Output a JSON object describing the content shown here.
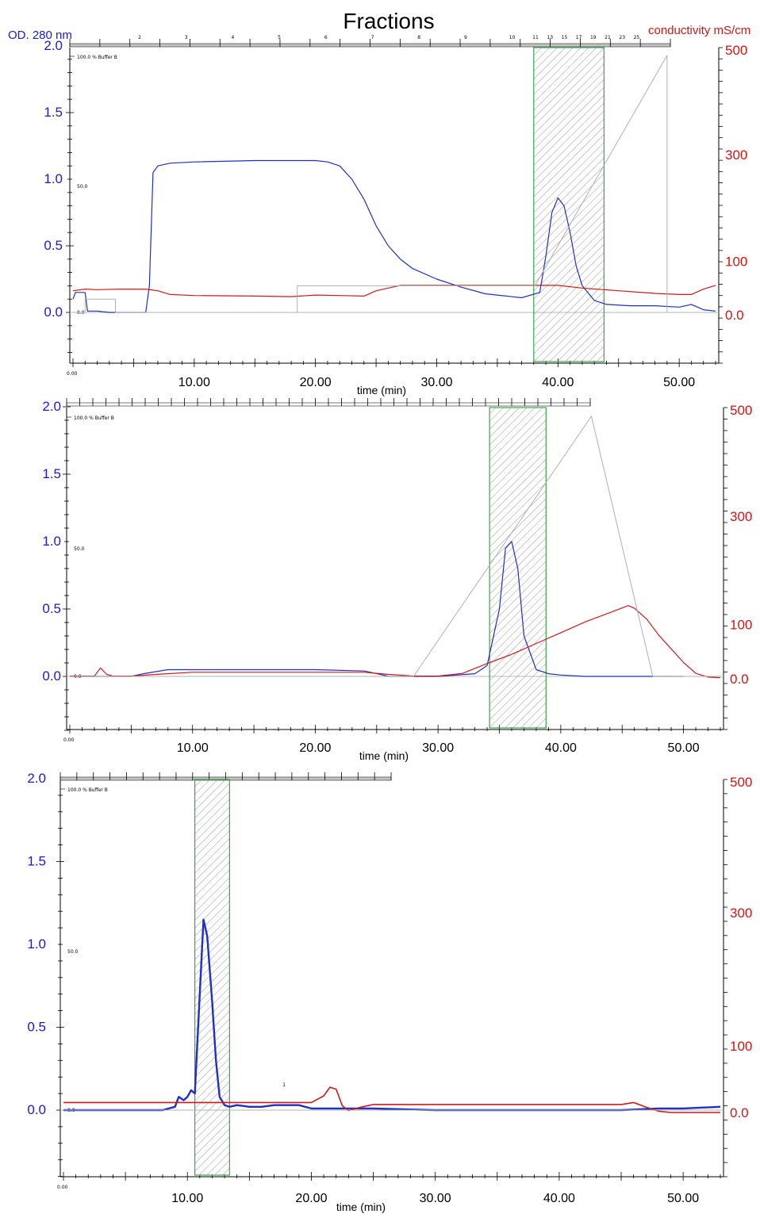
{
  "figure_title": "Fractions",
  "left_axis_label": "OD. 280 nm",
  "right_axis_label": "conductivity mS/cm",
  "colors": {
    "absorbance": "#1f2fc8",
    "conductivity": "#d21818",
    "gradient": "#b0b0b0",
    "fraction_box": "#3aa64a",
    "left_ticks": "#1a1ad6",
    "right_ticks": "#e01010"
  },
  "chart_data": [
    {
      "type": "line",
      "title": "Fractions",
      "xlabel": "time (min)",
      "ylabel": "OD. 280 nm",
      "y2label": "conductivity mS/cm",
      "xlim": [
        0,
        53
      ],
      "ylim": [
        -0.4,
        2.0
      ],
      "y2lim": [
        -50,
        500
      ],
      "x_ticks": [
        "0.00",
        "10.00",
        "20.00",
        "30.00",
        "40.00",
        "50.00"
      ],
      "y_ticks": [
        "0.0",
        "0.5",
        "1.0",
        "1.5",
        "2.0"
      ],
      "y2_ticks": [
        "0.0",
        "100",
        "300",
        "500"
      ],
      "inner_labels": [
        "100.0 % Buffer B",
        "50.0",
        "0.0"
      ],
      "fraction_labels": [
        "2",
        "3",
        "4",
        "5",
        "6",
        "7",
        "8",
        "9",
        "10",
        "11",
        "13",
        "15",
        "17",
        "19",
        "21",
        "23",
        "25"
      ],
      "fraction_window": [
        38.0,
        43.8
      ],
      "series": [
        {
          "role": "absorbance",
          "x": [
            0,
            0.2,
            1,
            1.2,
            2,
            3,
            4,
            5,
            6,
            6.3,
            6.6,
            7,
            8,
            10,
            15,
            20,
            21,
            22,
            23,
            24,
            25,
            26,
            27,
            28,
            30,
            32,
            34,
            36,
            37,
            38.5,
            39,
            39.5,
            40,
            40.5,
            41,
            41.5,
            42,
            43,
            44,
            46,
            48,
            50,
            51,
            52,
            53
          ],
          "y": [
            0.1,
            0.15,
            0.15,
            0.01,
            0.01,
            0.0,
            0.0,
            0.0,
            0.0,
            0.2,
            1.05,
            1.1,
            1.12,
            1.13,
            1.14,
            1.14,
            1.13,
            1.1,
            1.0,
            0.85,
            0.65,
            0.5,
            0.4,
            0.33,
            0.25,
            0.19,
            0.14,
            0.12,
            0.11,
            0.15,
            0.42,
            0.75,
            0.86,
            0.8,
            0.6,
            0.35,
            0.2,
            0.09,
            0.06,
            0.05,
            0.05,
            0.04,
            0.06,
            0.02,
            0.01
          ]
        },
        {
          "role": "conductivity",
          "x": [
            0,
            1,
            2,
            4,
            5,
            6,
            7,
            8,
            10,
            15,
            18,
            20,
            22,
            24,
            25,
            27,
            30,
            35,
            38,
            40,
            42,
            45,
            48,
            50,
            51,
            52,
            53
          ],
          "y": [
            45,
            48,
            47,
            48,
            48,
            48,
            45,
            38,
            36,
            35,
            34,
            37,
            36,
            35,
            45,
            55,
            55,
            55,
            55,
            55,
            50,
            45,
            40,
            38,
            38,
            48,
            55
          ]
        },
        {
          "role": "gradient",
          "x": [
            0,
            1,
            1,
            3.5,
            3.5,
            18.5,
            18.5,
            38.1,
            49.0,
            49.0,
            53
          ],
          "y": [
            0,
            0,
            0.1,
            0.1,
            0,
            0,
            0.2,
            0.2,
            1.93,
            0,
            0
          ]
        }
      ]
    },
    {
      "type": "line",
      "xlabel": "time (min)",
      "xlim": [
        0,
        53
      ],
      "ylim": [
        -0.4,
        2.0
      ],
      "y2lim": [
        -50,
        500
      ],
      "x_ticks": [
        "0.00",
        "10.00",
        "20.00",
        "30.00",
        "40.00",
        "50.00"
      ],
      "y_ticks": [
        "0.0",
        "0.5",
        "1.0",
        "1.5",
        "2.0"
      ],
      "y2_ticks": [
        "0.0",
        "100",
        "300",
        "500"
      ],
      "inner_labels": [
        "100.0 % Buffer B",
        "50.0",
        "0.0"
      ],
      "fraction_window": [
        34.2,
        38.8
      ],
      "series": [
        {
          "role": "absorbance",
          "x": [
            0,
            3,
            5,
            6,
            8,
            10,
            15,
            20,
            24,
            25,
            26,
            30,
            33,
            34,
            35,
            35.5,
            36,
            36.5,
            37,
            38,
            39,
            40,
            42,
            45,
            48,
            50
          ],
          "y": [
            0,
            0,
            0.0,
            0.02,
            0.05,
            0.05,
            0.05,
            0.05,
            0.04,
            0.02,
            0.0,
            0.0,
            0.02,
            0.08,
            0.5,
            0.95,
            1.0,
            0.8,
            0.3,
            0.05,
            0.02,
            0.01,
            0.0,
            0.0,
            0.0,
            0.0
          ]
        },
        {
          "role": "conductivity",
          "x": [
            0,
            2,
            2.5,
            3,
            3.5,
            5,
            7,
            10,
            15,
            20,
            24,
            26,
            28,
            30,
            32,
            34,
            36,
            38,
            40,
            42,
            44,
            45.5,
            46,
            47,
            48,
            50,
            51,
            52,
            53
          ],
          "y": [
            5,
            5,
            20,
            8,
            5,
            5,
            8,
            12,
            12,
            12,
            12,
            8,
            5,
            5,
            10,
            28,
            45,
            65,
            85,
            105,
            122,
            135,
            130,
            110,
            80,
            30,
            10,
            3,
            2
          ]
        },
        {
          "role": "gradient",
          "x": [
            0,
            28,
            42.5,
            47.5,
            53
          ],
          "y": [
            0,
            0,
            1.93,
            0,
            0
          ]
        }
      ]
    },
    {
      "type": "line",
      "xlabel": "time (min)",
      "xlim": [
        0,
        53
      ],
      "ylim": [
        -0.4,
        2.0
      ],
      "y2lim": [
        -50,
        500
      ],
      "x_ticks": [
        "0.00",
        "10.00",
        "20.00",
        "30.00",
        "40.00",
        "50.00"
      ],
      "y_ticks": [
        "0.0",
        "0.5",
        "1.0",
        "1.5",
        "2.0"
      ],
      "y2_ticks": [
        "0.0",
        "100",
        "300",
        "500"
      ],
      "inner_labels": [
        "100.0 % Buffer B",
        "50.0",
        "0.0",
        "1"
      ],
      "fraction_window": [
        10.6,
        13.4
      ],
      "series": [
        {
          "role": "absorbance",
          "x": [
            0,
            5,
            8,
            9,
            9.3,
            9.7,
            10,
            10.3,
            10.6,
            11,
            11.3,
            11.6,
            12,
            12.3,
            12.6,
            13,
            13.4,
            14,
            15,
            16,
            17,
            18,
            19,
            20,
            22,
            25,
            30,
            40,
            45,
            48,
            50,
            53
          ],
          "y": [
            0,
            0,
            0,
            0.02,
            0.08,
            0.06,
            0.08,
            0.12,
            0.1,
            0.7,
            1.15,
            1.05,
            0.65,
            0.3,
            0.08,
            0.03,
            0.02,
            0.03,
            0.02,
            0.02,
            0.03,
            0.03,
            0.03,
            0.01,
            0.01,
            0.01,
            0.0,
            0.0,
            0.0,
            0.01,
            0.01,
            0.02
          ]
        },
        {
          "role": "conductivity",
          "x": [
            0,
            18,
            19,
            20,
            20.5,
            21,
            21.5,
            22,
            22.5,
            23,
            24,
            25,
            30,
            40,
            44,
            45,
            46,
            47,
            48,
            49,
            53
          ],
          "y": [
            15,
            15,
            15,
            15,
            20,
            25,
            38,
            35,
            10,
            3,
            8,
            12,
            12,
            12,
            12,
            12,
            15,
            8,
            2,
            0,
            0
          ]
        },
        {
          "role": "gradient",
          "x": [
            0,
            53
          ],
          "y": [
            0,
            0
          ]
        }
      ]
    }
  ]
}
